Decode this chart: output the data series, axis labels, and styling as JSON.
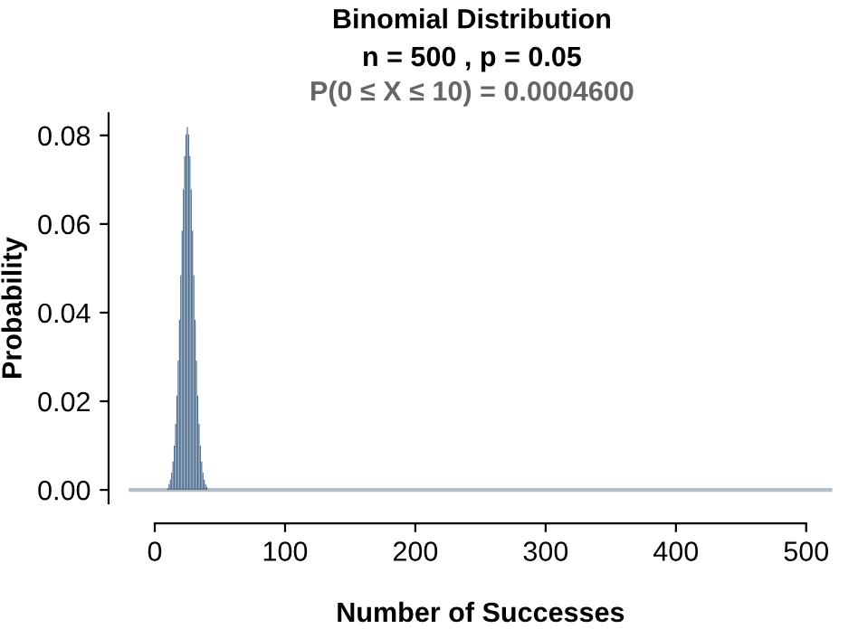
{
  "chart_data": {
    "type": "bar",
    "title": "Binomial Distribution",
    "subtitle": "n = 500 , p = 0.05",
    "annotations": [
      "P(0 ≤ X ≤ 10) = 0.0004600"
    ],
    "xlabel": "Number of Successes",
    "ylabel": "Probability",
    "series": [
      {
        "color": "#b22222",
        "x": [
          0,
          1,
          2,
          3,
          4,
          5,
          6,
          7,
          8,
          9,
          10
        ],
        "values": [
          0,
          0,
          0,
          0,
          0,
          0,
          0,
          0,
          0,
          0,
          0.0003
        ]
      },
      {
        "color": "#4a6a8c",
        "x": [
          11,
          12,
          13,
          14,
          15,
          16,
          17,
          18,
          19,
          20,
          21,
          22,
          23,
          24,
          25,
          26,
          27,
          28,
          29,
          30,
          31,
          32,
          33,
          34,
          35,
          36,
          37,
          38,
          39,
          40
        ],
        "values": [
          0.0013,
          0.0023,
          0.0039,
          0.0064,
          0.01,
          0.0149,
          0.0213,
          0.0292,
          0.0384,
          0.0484,
          0.0585,
          0.0678,
          0.0753,
          0.0802,
          0.0819,
          0.0802,
          0.0753,
          0.0678,
          0.0585,
          0.0484,
          0.0384,
          0.0292,
          0.0213,
          0.0149,
          0.01,
          0.0064,
          0.0039,
          0.0023,
          0.0013,
          0.0007
        ]
      }
    ],
    "ref_lines": [
      {
        "axis": "y",
        "value": 0,
        "color": "#b4bcc6"
      }
    ],
    "xlim": [
      -20,
      520
    ],
    "xticks": [
      0,
      100,
      200,
      300,
      400,
      500
    ],
    "ylim": [
      -0.003,
      0.085
    ],
    "yticks": [
      {
        "value": 0,
        "label": "0.00"
      },
      {
        "value": 0.02,
        "label": "0.02"
      },
      {
        "value": 0.04,
        "label": "0.04"
      },
      {
        "value": 0.06,
        "label": "0.06"
      },
      {
        "value": 0.08,
        "label": "0.08"
      }
    ],
    "grid": false,
    "legend": false
  }
}
